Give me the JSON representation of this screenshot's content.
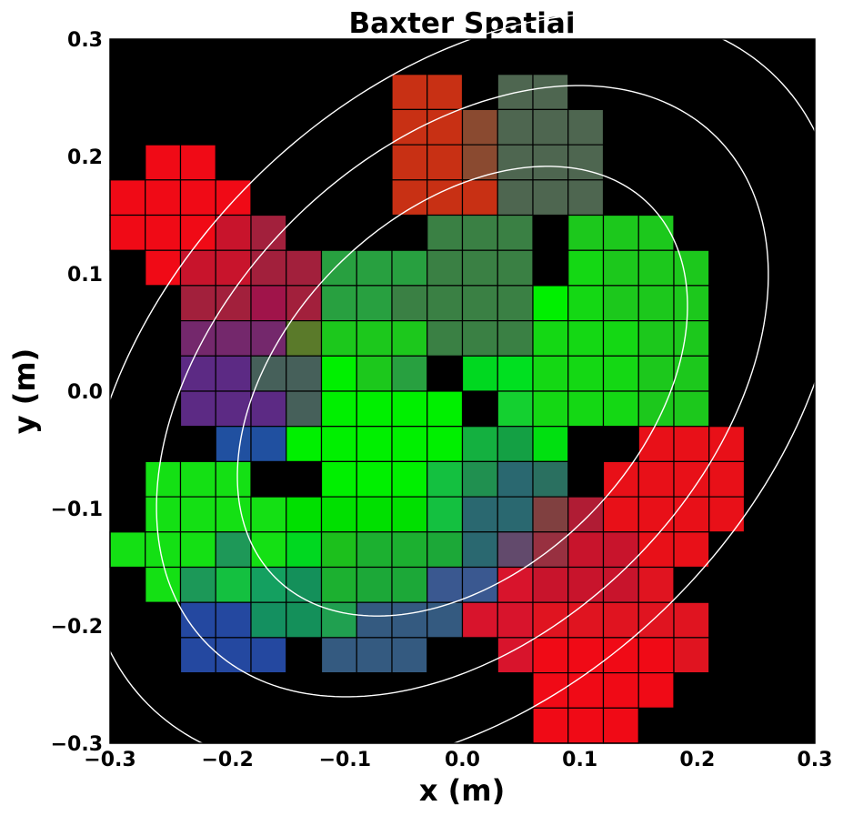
{
  "chart_data": {
    "type": "heatmap",
    "title": "Baxter Spatial",
    "xlabel": "x (m)",
    "ylabel": "y (m)",
    "xlim": [
      -0.3,
      0.3
    ],
    "ylim": [
      -0.3,
      0.3
    ],
    "xticks": [
      "−0.3",
      "−0.2",
      "−0.1",
      "0.0",
      "0.1",
      "0.2",
      "0.3"
    ],
    "yticks": [
      "−0.3",
      "−0.2",
      "−0.1",
      "0.0",
      "0.1",
      "0.2",
      "0.3"
    ],
    "background_color": "#000000",
    "cell_edge_color": "#000000",
    "contour_color": "#ffffff",
    "cell_size": [
      0.03,
      0.03
    ],
    "contours": [
      {
        "center": [
          0.0,
          0.0
        ],
        "semi_major": 0.225,
        "semi_minor": 0.151,
        "angle_deg": 45
      },
      {
        "center": [
          0.0,
          0.0
        ],
        "semi_major": 0.306,
        "semi_minor": 0.205,
        "angle_deg": 45
      },
      {
        "center": [
          0.0,
          0.0
        ],
        "semi_major": 0.378,
        "semi_minor": 0.253,
        "angle_deg": 45
      }
    ],
    "columns": [
      {
        "x": -0.285,
        "cells": [
          [
            0.165,
            "#f00a16"
          ],
          [
            0.135,
            "#f00a16"
          ],
          [
            -0.135,
            "#14e014"
          ]
        ]
      },
      {
        "x": -0.255,
        "cells": [
          [
            0.195,
            "#f00a16"
          ],
          [
            0.165,
            "#f00a16"
          ],
          [
            0.135,
            "#f00a16"
          ],
          [
            0.105,
            "#f00a16"
          ],
          [
            -0.075,
            "#14e014"
          ],
          [
            -0.105,
            "#14e014"
          ],
          [
            -0.135,
            "#14e014"
          ],
          [
            -0.165,
            "#14e014"
          ]
        ]
      },
      {
        "x": -0.225,
        "cells": [
          [
            0.195,
            "#f00a16"
          ],
          [
            0.165,
            "#f00a16"
          ],
          [
            0.135,
            "#f00a16"
          ],
          [
            0.105,
            "#c8142c"
          ],
          [
            0.075,
            "#a2203c"
          ],
          [
            0.045,
            "#74286c"
          ],
          [
            0.015,
            "#5c2a84"
          ],
          [
            -0.015,
            "#5c2a84"
          ],
          [
            -0.075,
            "#14e014"
          ],
          [
            -0.105,
            "#14e014"
          ],
          [
            -0.135,
            "#14e014"
          ],
          [
            -0.165,
            "#1c9858"
          ],
          [
            -0.195,
            "#2448a0"
          ],
          [
            -0.225,
            "#2448a0"
          ]
        ]
      },
      {
        "x": -0.195,
        "cells": [
          [
            0.165,
            "#f00a16"
          ],
          [
            0.135,
            "#c8142c"
          ],
          [
            0.105,
            "#c8142c"
          ],
          [
            0.075,
            "#a2203c"
          ],
          [
            0.045,
            "#74286c"
          ],
          [
            0.015,
            "#5c2a84"
          ],
          [
            -0.015,
            "#5c2a84"
          ],
          [
            -0.045,
            "#2050a0"
          ],
          [
            -0.075,
            "#14e014"
          ],
          [
            -0.105,
            "#14e014"
          ],
          [
            -0.135,
            "#1e9858"
          ],
          [
            -0.165,
            "#14c040"
          ],
          [
            -0.195,
            "#2448a0"
          ],
          [
            -0.225,
            "#2448a0"
          ]
        ]
      },
      {
        "x": -0.165,
        "cells": [
          [
            0.135,
            "#a2203c"
          ],
          [
            0.105,
            "#a2203c"
          ],
          [
            0.075,
            "#a0144a"
          ],
          [
            0.045,
            "#74286c"
          ],
          [
            0.015,
            "#46605a"
          ],
          [
            -0.015,
            "#5c2a84"
          ],
          [
            -0.045,
            "#2050a0"
          ],
          [
            -0.105,
            "#14e014"
          ],
          [
            -0.135,
            "#14e014"
          ],
          [
            -0.165,
            "#14a060"
          ],
          [
            -0.195,
            "#149060"
          ],
          [
            -0.225,
            "#2448a0"
          ]
        ]
      },
      {
        "x": -0.135,
        "cells": [
          [
            0.105,
            "#a2203c"
          ],
          [
            0.075,
            "#a2203c"
          ],
          [
            0.045,
            "#5a7a2a"
          ],
          [
            0.015,
            "#46605a"
          ],
          [
            -0.015,
            "#46605a"
          ],
          [
            -0.045,
            "#00f000"
          ],
          [
            -0.105,
            "#00e000"
          ],
          [
            -0.135,
            "#00d820"
          ],
          [
            -0.165,
            "#14905a"
          ],
          [
            -0.195,
            "#14905a"
          ]
        ]
      },
      {
        "x": -0.105,
        "cells": [
          [
            0.105,
            "#28a040"
          ],
          [
            0.075,
            "#28a040"
          ],
          [
            0.045,
            "#1cc81c"
          ],
          [
            0.015,
            "#00f000"
          ],
          [
            -0.015,
            "#00f000"
          ],
          [
            -0.045,
            "#00f000"
          ],
          [
            -0.075,
            "#00f000"
          ],
          [
            -0.105,
            "#00e000"
          ],
          [
            -0.135,
            "#1cc01c"
          ],
          [
            -0.165,
            "#1cb030"
          ],
          [
            -0.195,
            "#20a050"
          ],
          [
            -0.225,
            "#345a80"
          ]
        ]
      },
      {
        "x": -0.075,
        "cells": [
          [
            0.105,
            "#28a040"
          ],
          [
            0.075,
            "#28a040"
          ],
          [
            0.045,
            "#1cc81c"
          ],
          [
            0.015,
            "#1cc81c"
          ],
          [
            -0.015,
            "#00f000"
          ],
          [
            -0.045,
            "#00f000"
          ],
          [
            -0.075,
            "#00f000"
          ],
          [
            -0.105,
            "#00e000"
          ],
          [
            -0.135,
            "#1cb030"
          ],
          [
            -0.165,
            "#1ca838"
          ],
          [
            -0.195,
            "#345a80"
          ],
          [
            -0.225,
            "#345a80"
          ]
        ]
      },
      {
        "x": -0.045,
        "cells": [
          [
            0.255,
            "#c83014"
          ],
          [
            0.225,
            "#c83014"
          ],
          [
            0.195,
            "#c83014"
          ],
          [
            0.165,
            "#c83014"
          ],
          [
            0.105,
            "#28a040"
          ],
          [
            0.075,
            "#3a8044"
          ],
          [
            0.045,
            "#1cc81c"
          ],
          [
            0.015,
            "#28a040"
          ],
          [
            -0.015,
            "#00f000"
          ],
          [
            -0.045,
            "#00f000"
          ],
          [
            -0.075,
            "#00f000"
          ],
          [
            -0.105,
            "#00e000"
          ],
          [
            -0.135,
            "#1cb030"
          ],
          [
            -0.165,
            "#1ca838"
          ],
          [
            -0.195,
            "#345a80"
          ],
          [
            -0.225,
            "#345a80"
          ]
        ]
      },
      {
        "x": -0.015,
        "cells": [
          [
            0.255,
            "#c83014"
          ],
          [
            0.225,
            "#c83014"
          ],
          [
            0.195,
            "#c83014"
          ],
          [
            0.165,
            "#c83014"
          ],
          [
            0.135,
            "#3a8044"
          ],
          [
            0.105,
            "#3a8044"
          ],
          [
            0.075,
            "#3a8044"
          ],
          [
            0.045,
            "#3a8044"
          ],
          [
            -0.015,
            "#00f000"
          ],
          [
            -0.045,
            "#00f000"
          ],
          [
            -0.075,
            "#14c040"
          ],
          [
            -0.105,
            "#14c040"
          ],
          [
            -0.135,
            "#1ca838"
          ],
          [
            -0.165,
            "#3a5890"
          ],
          [
            -0.195,
            "#345a80"
          ]
        ]
      },
      {
        "x": 0.015,
        "cells": [
          [
            0.225,
            "#8a4a30"
          ],
          [
            0.195,
            "#8a4a30"
          ],
          [
            0.165,
            "#c83014"
          ],
          [
            0.135,
            "#3a8044"
          ],
          [
            0.105,
            "#3a8044"
          ],
          [
            0.075,
            "#3a8044"
          ],
          [
            0.045,
            "#3a8044"
          ],
          [
            0.015,
            "#00d820"
          ],
          [
            -0.045,
            "#14b040"
          ],
          [
            -0.075,
            "#209050"
          ],
          [
            -0.105,
            "#2a6870"
          ],
          [
            -0.135,
            "#2a6870"
          ],
          [
            -0.165,
            "#3a5890"
          ],
          [
            -0.195,
            "#d8142c"
          ]
        ]
      },
      {
        "x": 0.045,
        "cells": [
          [
            0.255,
            "#4e6650"
          ],
          [
            0.225,
            "#4e6650"
          ],
          [
            0.195,
            "#4e6650"
          ],
          [
            0.165,
            "#4e6650"
          ],
          [
            0.135,
            "#3a8044"
          ],
          [
            0.105,
            "#3a8044"
          ],
          [
            0.075,
            "#3a8044"
          ],
          [
            0.045,
            "#3a8044"
          ],
          [
            0.015,
            "#00e020"
          ],
          [
            -0.015,
            "#14d030"
          ],
          [
            -0.045,
            "#14a044"
          ],
          [
            -0.075,
            "#2a6870"
          ],
          [
            -0.105,
            "#2a6870"
          ],
          [
            -0.135,
            "#624a6c"
          ],
          [
            -0.165,
            "#d8142c"
          ],
          [
            -0.195,
            "#d8142c"
          ],
          [
            -0.225,
            "#d8142c"
          ]
        ]
      },
      {
        "x": 0.075,
        "cells": [
          [
            0.255,
            "#4e6650"
          ],
          [
            0.225,
            "#4e6650"
          ],
          [
            0.195,
            "#4e6650"
          ],
          [
            0.165,
            "#4e6650"
          ],
          [
            0.075,
            "#00f000"
          ],
          [
            0.045,
            "#14d814"
          ],
          [
            0.015,
            "#14d814"
          ],
          [
            -0.015,
            "#14d814"
          ],
          [
            -0.045,
            "#00e010"
          ],
          [
            -0.075,
            "#2a7060"
          ],
          [
            -0.105,
            "#804040"
          ],
          [
            -0.135,
            "#983040"
          ],
          [
            -0.165,
            "#c8142c"
          ],
          [
            -0.195,
            "#e01420"
          ],
          [
            -0.225,
            "#f00a16"
          ],
          [
            -0.255,
            "#f00a16"
          ],
          [
            -0.285,
            "#f00a16"
          ]
        ]
      },
      {
        "x": 0.105,
        "cells": [
          [
            0.225,
            "#4e6650"
          ],
          [
            0.195,
            "#4e6650"
          ],
          [
            0.165,
            "#4e6650"
          ],
          [
            0.135,
            "#1cc81c"
          ],
          [
            0.105,
            "#14d814"
          ],
          [
            0.075,
            "#14d814"
          ],
          [
            0.045,
            "#14d814"
          ],
          [
            0.015,
            "#14d814"
          ],
          [
            -0.015,
            "#14d814"
          ],
          [
            -0.105,
            "#b01c34"
          ],
          [
            -0.135,
            "#c8142c"
          ],
          [
            -0.165,
            "#c8142c"
          ],
          [
            -0.195,
            "#e01420"
          ],
          [
            -0.225,
            "#f00a16"
          ],
          [
            -0.255,
            "#f00a16"
          ],
          [
            -0.285,
            "#f00a16"
          ]
        ]
      },
      {
        "x": 0.135,
        "cells": [
          [
            0.135,
            "#1cc81c"
          ],
          [
            0.105,
            "#1cc81c"
          ],
          [
            0.075,
            "#1cc81c"
          ],
          [
            0.045,
            "#14d814"
          ],
          [
            0.015,
            "#14d814"
          ],
          [
            -0.015,
            "#14d814"
          ],
          [
            -0.075,
            "#e81018"
          ],
          [
            -0.105,
            "#e81018"
          ],
          [
            -0.135,
            "#c8142c"
          ],
          [
            -0.165,
            "#c8142c"
          ],
          [
            -0.195,
            "#e01420"
          ],
          [
            -0.225,
            "#f00a16"
          ],
          [
            -0.255,
            "#f00a16"
          ],
          [
            -0.285,
            "#f00a16"
          ]
        ]
      },
      {
        "x": 0.165,
        "cells": [
          [
            0.135,
            "#1cc81c"
          ],
          [
            0.105,
            "#1cc81c"
          ],
          [
            0.075,
            "#1cc81c"
          ],
          [
            0.045,
            "#1cc81c"
          ],
          [
            0.015,
            "#1cc81c"
          ],
          [
            -0.015,
            "#1cc81c"
          ],
          [
            -0.045,
            "#e81018"
          ],
          [
            -0.075,
            "#e81018"
          ],
          [
            -0.105,
            "#e81018"
          ],
          [
            -0.135,
            "#e81018"
          ],
          [
            -0.165,
            "#e01420"
          ],
          [
            -0.195,
            "#e01420"
          ],
          [
            -0.225,
            "#f00a16"
          ],
          [
            -0.255,
            "#f00a16"
          ]
        ]
      },
      {
        "x": 0.195,
        "cells": [
          [
            0.105,
            "#1cc81c"
          ],
          [
            0.075,
            "#1cc81c"
          ],
          [
            0.045,
            "#1cc81c"
          ],
          [
            0.015,
            "#1cc81c"
          ],
          [
            -0.015,
            "#1cc81c"
          ],
          [
            -0.045,
            "#e81018"
          ],
          [
            -0.075,
            "#e81018"
          ],
          [
            -0.105,
            "#e81018"
          ],
          [
            -0.135,
            "#e81018"
          ],
          [
            -0.195,
            "#e01420"
          ],
          [
            -0.225,
            "#e01420"
          ]
        ]
      },
      {
        "x": 0.225,
        "cells": [
          [
            -0.045,
            "#e81018"
          ],
          [
            -0.075,
            "#e81018"
          ],
          [
            -0.105,
            "#e81018"
          ]
        ]
      }
    ]
  }
}
